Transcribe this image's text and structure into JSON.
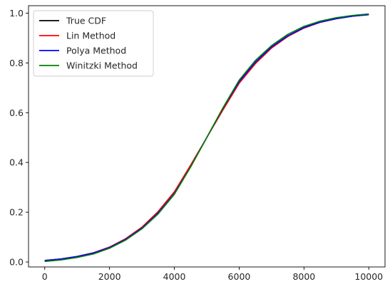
{
  "chart_data": {
    "type": "line",
    "title": "",
    "xlabel": "",
    "ylabel": "",
    "xlim": [
      -500,
      10500
    ],
    "ylim": [
      -0.02,
      1.03
    ],
    "grid": false,
    "legend_position": "top-left",
    "x_ticks": [
      0,
      2000,
      4000,
      6000,
      8000,
      10000
    ],
    "x_tick_labels": [
      "0",
      "2000",
      "4000",
      "6000",
      "8000",
      "10000"
    ],
    "y_ticks": [
      0.0,
      0.2,
      0.4,
      0.6,
      0.8,
      1.0
    ],
    "y_tick_labels": [
      "0.0",
      "0.2",
      "0.4",
      "0.6",
      "0.8",
      "1.0"
    ],
    "x": [
      0,
      500,
      1000,
      1500,
      2000,
      2500,
      3000,
      3500,
      4000,
      4500,
      5000,
      5500,
      6000,
      6500,
      7000,
      7500,
      8000,
      8500,
      9000,
      9500,
      10000
    ],
    "series": [
      {
        "name": "True CDF",
        "color": "#000000",
        "values": [
          0.006,
          0.012,
          0.022,
          0.036,
          0.058,
          0.091,
          0.136,
          0.197,
          0.274,
          0.382,
          0.5,
          0.618,
          0.726,
          0.803,
          0.864,
          0.909,
          0.942,
          0.964,
          0.978,
          0.988,
          0.994
        ]
      },
      {
        "name": "Lin Method",
        "color": "#ff0000",
        "values": [
          0.006,
          0.012,
          0.022,
          0.037,
          0.06,
          0.094,
          0.14,
          0.203,
          0.282,
          0.389,
          0.5,
          0.611,
          0.718,
          0.797,
          0.86,
          0.906,
          0.94,
          0.963,
          0.978,
          0.988,
          0.994
        ]
      },
      {
        "name": "Polya Method",
        "color": "#0000ff",
        "values": [
          0.006,
          0.012,
          0.022,
          0.036,
          0.058,
          0.091,
          0.136,
          0.197,
          0.275,
          0.382,
          0.5,
          0.618,
          0.725,
          0.803,
          0.864,
          0.909,
          0.942,
          0.964,
          0.978,
          0.988,
          0.994
        ]
      },
      {
        "name": "Winitzki Method",
        "color": "#008000",
        "values": [
          0.002,
          0.008,
          0.018,
          0.032,
          0.055,
          0.088,
          0.133,
          0.193,
          0.272,
          0.381,
          0.5,
          0.62,
          0.731,
          0.81,
          0.87,
          0.915,
          0.947,
          0.968,
          0.982,
          0.991,
          0.997
        ]
      }
    ]
  }
}
